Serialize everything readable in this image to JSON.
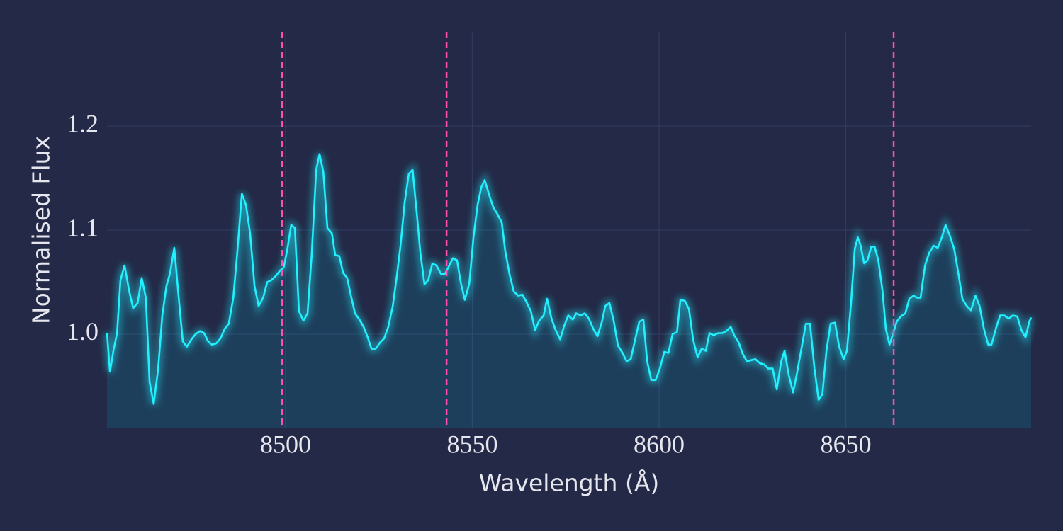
{
  "chart_data": {
    "type": "line",
    "x_label": "Wavelength (Å)",
    "y_label": "Normalised Flux",
    "x": [
      8452.2,
      8453.0,
      8453.9,
      8454.9,
      8455.8,
      8456.9,
      8458.1,
      8459.2,
      8460.4,
      8461.5,
      8462.6,
      8463.6,
      8464.7,
      8465.9,
      8467.0,
      8468.1,
      8469.1,
      8470.2,
      8471.4,
      8472.5,
      8473.6,
      8474.8,
      8475.9,
      8477.1,
      8478.2,
      8479.3,
      8480.3,
      8481.4,
      8482.6,
      8483.7,
      8484.8,
      8486.0,
      8487.1,
      8488.3,
      8489.4,
      8490.5,
      8491.7,
      8492.8,
      8494.0,
      8495.1,
      8496.2,
      8497.4,
      8498.5,
      8499.5,
      8500.4,
      8501.5,
      8502.5,
      8503.6,
      8504.8,
      8505.9,
      8507.0,
      8508.2,
      8509.1,
      8510.1,
      8511.2,
      8512.4,
      8513.3,
      8514.4,
      8515.4,
      8516.5,
      8517.5,
      8518.6,
      8519.8,
      8520.9,
      8522.0,
      8523.0,
      8524.1,
      8525.3,
      8526.4,
      8527.5,
      8528.7,
      8529.8,
      8530.8,
      8531.9,
      8533.0,
      8534.0,
      8535.1,
      8536.1,
      8537.2,
      8538.2,
      8539.3,
      8540.4,
      8541.6,
      8542.7,
      8543.7,
      8544.8,
      8545.9,
      8546.9,
      8548.0,
      8549.2,
      8550.3,
      8551.4,
      8552.4,
      8553.3,
      8554.5,
      8555.6,
      8556.8,
      8557.9,
      8558.8,
      8560.0,
      8561.1,
      8562.3,
      8563.4,
      8564.5,
      8565.7,
      8566.8,
      8567.9,
      8569.1,
      8570.0,
      8571.2,
      8572.3,
      8573.5,
      8574.6,
      8575.7,
      8576.9,
      8577.8,
      8579.0,
      8580.1,
      8581.2,
      8582.4,
      8583.5,
      8584.7,
      8585.6,
      8586.7,
      8587.9,
      8589.0,
      8590.2,
      8591.3,
      8592.4,
      8593.6,
      8594.7,
      8595.8,
      8596.8,
      8597.9,
      8599.1,
      8600.2,
      8601.4,
      8602.5,
      8603.6,
      8604.8,
      8605.7,
      8606.9,
      8608.0,
      8609.1,
      8610.3,
      8611.4,
      8612.5,
      8613.5,
      8614.6,
      8615.8,
      8616.9,
      8618.0,
      8619.2,
      8620.1,
      8621.3,
      8622.4,
      8623.5,
      8624.7,
      8625.8,
      8627.0,
      8628.1,
      8629.2,
      8630.4,
      8631.5,
      8632.7,
      8633.6,
      8634.7,
      8635.9,
      8637.0,
      8638.2,
      8639.3,
      8640.4,
      8641.6,
      8642.7,
      8643.7,
      8644.8,
      8645.9,
      8647.1,
      8648.2,
      8649.4,
      8650.3,
      8651.4,
      8652.4,
      8653.2,
      8653.9,
      8654.9,
      8655.8,
      8656.8,
      8657.7,
      8658.7,
      8659.8,
      8660.7,
      8661.7,
      8662.6,
      8663.6,
      8664.7,
      8665.9,
      8667.0,
      8668.1,
      8669.1,
      8670.0,
      8671.2,
      8672.3,
      8673.5,
      8674.6,
      8675.7,
      8676.7,
      8677.8,
      8679.0,
      8680.1,
      8681.2,
      8682.4,
      8683.5,
      8684.7,
      8685.8,
      8686.9,
      8688.1,
      8689.0,
      8690.2,
      8691.3,
      8692.4,
      8693.6,
      8694.7,
      8695.9,
      8697.0,
      8698.1,
      8699.1,
      8699.6
    ],
    "values": [
      1.001,
      0.964,
      0.984,
      1.001,
      1.052,
      1.066,
      1.042,
      1.025,
      1.03,
      1.054,
      1.035,
      0.954,
      0.933,
      0.967,
      1.018,
      1.046,
      1.059,
      1.083,
      1.035,
      0.993,
      0.988,
      0.995,
      1.0,
      1.003,
      1.001,
      0.993,
      0.99,
      0.991,
      0.996,
      1.005,
      1.01,
      1.035,
      1.08,
      1.135,
      1.124,
      1.097,
      1.046,
      1.027,
      1.035,
      1.05,
      1.052,
      1.056,
      1.061,
      1.064,
      1.08,
      1.105,
      1.102,
      1.022,
      1.013,
      1.02,
      1.076,
      1.158,
      1.173,
      1.156,
      1.102,
      1.097,
      1.076,
      1.075,
      1.059,
      1.054,
      1.037,
      1.02,
      1.014,
      1.007,
      0.997,
      0.986,
      0.986,
      0.992,
      0.996,
      1.007,
      1.027,
      1.056,
      1.086,
      1.127,
      1.154,
      1.158,
      1.117,
      1.078,
      1.048,
      1.052,
      1.068,
      1.066,
      1.058,
      1.058,
      1.065,
      1.073,
      1.071,
      1.05,
      1.033,
      1.049,
      1.093,
      1.124,
      1.141,
      1.148,
      1.134,
      1.122,
      1.115,
      1.107,
      1.08,
      1.057,
      1.041,
      1.037,
      1.038,
      1.031,
      1.022,
      1.004,
      1.013,
      1.018,
      1.034,
      1.015,
      1.004,
      0.995,
      1.008,
      1.018,
      1.014,
      1.02,
      1.018,
      1.02,
      1.015,
      1.005,
      0.998,
      1.012,
      1.027,
      1.03,
      1.012,
      0.989,
      0.982,
      0.974,
      0.976,
      0.995,
      1.012,
      1.014,
      0.974,
      0.956,
      0.956,
      0.967,
      0.983,
      0.982,
      1.0,
      1.002,
      1.033,
      1.032,
      1.024,
      0.995,
      0.978,
      0.986,
      0.984,
      1.001,
      0.999,
      1.001,
      1.001,
      1.003,
      1.007,
      0.999,
      0.992,
      0.981,
      0.974,
      0.975,
      0.976,
      0.972,
      0.971,
      0.967,
      0.967,
      0.947,
      0.974,
      0.984,
      0.961,
      0.944,
      0.964,
      0.988,
      1.01,
      1.01,
      0.967,
      0.937,
      0.942,
      0.984,
      1.01,
      1.011,
      0.988,
      0.976,
      0.984,
      1.03,
      1.082,
      1.093,
      1.086,
      1.068,
      1.071,
      1.084,
      1.084,
      1.071,
      1.042,
      1.005,
      0.99,
      1.0,
      1.012,
      1.017,
      1.02,
      1.034,
      1.037,
      1.035,
      1.035,
      1.066,
      1.078,
      1.085,
      1.083,
      1.093,
      1.105,
      1.095,
      1.082,
      1.059,
      1.034,
      1.027,
      1.023,
      1.037,
      1.027,
      1.006,
      0.99,
      0.99,
      1.006,
      1.018,
      1.018,
      1.015,
      1.018,
      1.017,
      1.004,
      0.997,
      1.012,
      1.016
    ],
    "color": "#22f0ff",
    "fill_color": "rgba(0,200,230,0.14)",
    "vlines": [
      8499.1,
      8543.1,
      8662.8
    ],
    "vline_color": "#ff4fb0",
    "xlim": [
      8452.2,
      8699.6
    ],
    "ylim": [
      0.9095,
      1.2905
    ],
    "xticks": [
      8500,
      8550,
      8600,
      8650
    ],
    "yticks": [
      {
        "value": 1.0,
        "label": "1.0"
      },
      1.1,
      1.2
    ],
    "grid": true
  }
}
